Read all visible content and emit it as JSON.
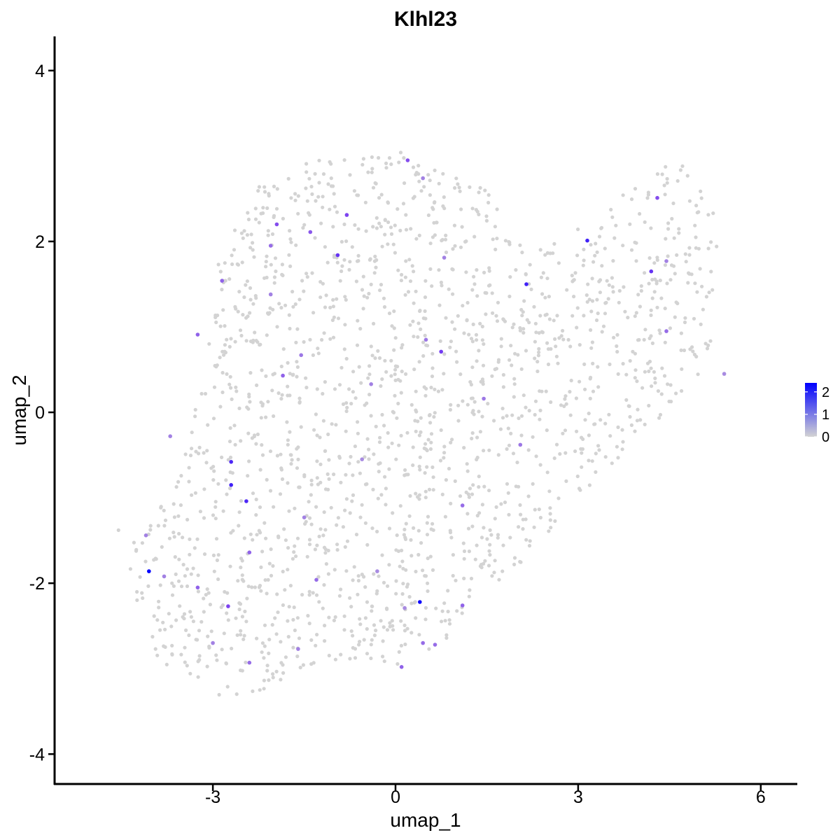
{
  "chart_data": {
    "type": "scatter",
    "title": "Klhl23",
    "xlabel": "umap_1",
    "ylabel": "umap_2",
    "xlim": [
      -5.6,
      6.6
    ],
    "ylim": [
      -4.35,
      4.4
    ],
    "x_ticks": [
      -3,
      0,
      3,
      6
    ],
    "x_tick_labels": [
      "-3",
      "0",
      "3",
      "6"
    ],
    "y_ticks": [
      -4,
      -2,
      0,
      2,
      4
    ],
    "y_tick_labels": [
      "-4",
      "-2",
      "0",
      "2",
      "4"
    ],
    "grid": false,
    "legend": {
      "position": "right",
      "type": "colorbar",
      "ticks": [
        "2",
        "1",
        "0"
      ],
      "range": [
        0,
        2.4
      ],
      "low_color": "#D3D3D3",
      "high_color": "#0000FF"
    },
    "background_color": "#D3D3D3",
    "background_regions": [
      {
        "polygon": [
          [
            -4.7,
            -1.2
          ],
          [
            -4.1,
            -1.4
          ],
          [
            -3.9,
            -1.05
          ],
          [
            -3.4,
            -0.3
          ],
          [
            -3.35,
            0.2
          ],
          [
            -3.0,
            1.0
          ],
          [
            -2.9,
            1.8
          ],
          [
            -2.7,
            2.1
          ],
          [
            -2.3,
            2.6
          ],
          [
            -1.9,
            2.85
          ],
          [
            -1.2,
            3.0
          ],
          [
            -0.5,
            3.05
          ],
          [
            0.2,
            3.05
          ],
          [
            0.8,
            2.8
          ],
          [
            1.5,
            2.75
          ],
          [
            1.8,
            2.3
          ],
          [
            2.2,
            1.95
          ],
          [
            2.7,
            2.0
          ],
          [
            3.2,
            2.3
          ],
          [
            3.6,
            2.55
          ],
          [
            4.2,
            2.7
          ],
          [
            4.4,
            3.05
          ],
          [
            4.8,
            2.85
          ],
          [
            5.0,
            2.6
          ],
          [
            5.35,
            2.3
          ],
          [
            5.4,
            1.9
          ],
          [
            5.25,
            1.3
          ],
          [
            5.2,
            0.8
          ],
          [
            5.05,
            0.5
          ],
          [
            4.7,
            0.2
          ],
          [
            4.3,
            -0.1
          ],
          [
            3.8,
            -0.4
          ],
          [
            3.45,
            -0.75
          ],
          [
            3.0,
            -1.05
          ],
          [
            2.6,
            -1.35
          ],
          [
            2.3,
            -1.6
          ],
          [
            2.0,
            -1.85
          ],
          [
            1.6,
            -2.05
          ],
          [
            1.1,
            -2.35
          ],
          [
            0.9,
            -2.7
          ],
          [
            0.5,
            -2.9
          ],
          [
            0.0,
            -3.05
          ],
          [
            -0.6,
            -2.95
          ],
          [
            -1.3,
            -2.95
          ],
          [
            -1.8,
            -3.1
          ],
          [
            -2.3,
            -3.3
          ],
          [
            -2.6,
            -3.5
          ],
          [
            -3.0,
            -3.3
          ],
          [
            -3.6,
            -3.1
          ],
          [
            -4.0,
            -2.8
          ],
          [
            -4.35,
            -2.3
          ],
          [
            -4.45,
            -1.8
          ],
          [
            -4.3,
            -1.6
          ],
          [
            -4.6,
            -1.4
          ]
        ],
        "count": 1800,
        "seed": 23
      }
    ],
    "series": [
      {
        "values": [
          {
            "x": 0.4,
            "y": -2.22,
            "v": 2.3
          },
          {
            "x": -4.05,
            "y": -1.86,
            "v": 2.4
          },
          {
            "x": -2.7,
            "y": -0.85,
            "v": 1.9
          },
          {
            "x": -2.45,
            "y": -1.04,
            "v": 1.8
          },
          {
            "x": -2.7,
            "y": -0.58,
            "v": 1.8
          },
          {
            "x": 3.15,
            "y": 2.01,
            "v": 1.9
          },
          {
            "x": 2.15,
            "y": 1.5,
            "v": 1.9
          },
          {
            "x": 4.2,
            "y": 1.65,
            "v": 1.6
          },
          {
            "x": -0.95,
            "y": 1.84,
            "v": 1.6
          },
          {
            "x": 0.75,
            "y": 0.71,
            "v": 1.5
          },
          {
            "x": -0.8,
            "y": 2.31,
            "v": 1.4
          },
          {
            "x": -1.95,
            "y": 2.2,
            "v": 1.3
          },
          {
            "x": -1.4,
            "y": 2.11,
            "v": 1.2
          },
          {
            "x": 0.2,
            "y": 2.95,
            "v": 1.3
          },
          {
            "x": 4.3,
            "y": 2.51,
            "v": 1.3
          },
          {
            "x": -2.75,
            "y": -2.27,
            "v": 1.4
          },
          {
            "x": -2.4,
            "y": -1.64,
            "v": 1.1
          },
          {
            "x": -3.25,
            "y": -2.05,
            "v": 1.1
          },
          {
            "x": -3.25,
            "y": 0.91,
            "v": 1.1
          },
          {
            "x": -2.85,
            "y": 1.54,
            "v": 1.1
          },
          {
            "x": -2.05,
            "y": 1.95,
            "v": 1.0
          },
          {
            "x": -1.85,
            "y": 0.43,
            "v": 1.1
          },
          {
            "x": 1.1,
            "y": -2.26,
            "v": 1.1
          },
          {
            "x": 0.1,
            "y": -2.98,
            "v": 1.1
          },
          {
            "x": -1.3,
            "y": -1.96,
            "v": 1.0
          },
          {
            "x": -2.4,
            "y": -2.93,
            "v": 1.0
          },
          {
            "x": 0.45,
            "y": -2.7,
            "v": 1.0
          },
          {
            "x": 0.65,
            "y": -2.72,
            "v": 1.0
          },
          {
            "x": 1.1,
            "y": -1.09,
            "v": 1.0
          },
          {
            "x": 2.05,
            "y": -0.38,
            "v": 0.9
          },
          {
            "x": 1.45,
            "y": 0.16,
            "v": 0.9
          },
          {
            "x": 4.45,
            "y": 0.95,
            "v": 1.0
          },
          {
            "x": 4.45,
            "y": 1.77,
            "v": 0.8
          },
          {
            "x": -1.55,
            "y": 0.67,
            "v": 0.9
          },
          {
            "x": 0.5,
            "y": 0.85,
            "v": 0.9
          },
          {
            "x": -0.4,
            "y": 0.33,
            "v": 0.8
          },
          {
            "x": -2.05,
            "y": 1.38,
            "v": 0.8
          },
          {
            "x": -4.1,
            "y": -1.44,
            "v": 0.8
          },
          {
            "x": -3.8,
            "y": -1.92,
            "v": 0.8
          },
          {
            "x": -3.7,
            "y": -0.28,
            "v": 0.8
          },
          {
            "x": -3.0,
            "y": -2.7,
            "v": 0.8
          },
          {
            "x": 0.45,
            "y": 2.74,
            "v": 0.8
          },
          {
            "x": -1.6,
            "y": -2.77,
            "v": 0.8
          },
          {
            "x": -1.5,
            "y": -1.23,
            "v": 0.8
          },
          {
            "x": 0.8,
            "y": 1.81,
            "v": 0.8
          },
          {
            "x": 5.4,
            "y": 0.45,
            "v": 0.7
          },
          {
            "x": -0.55,
            "y": -0.55,
            "v": 0.7
          },
          {
            "x": 0.15,
            "y": -2.29,
            "v": 0.7
          },
          {
            "x": -0.3,
            "y": -1.86,
            "v": 0.7
          }
        ]
      }
    ]
  }
}
